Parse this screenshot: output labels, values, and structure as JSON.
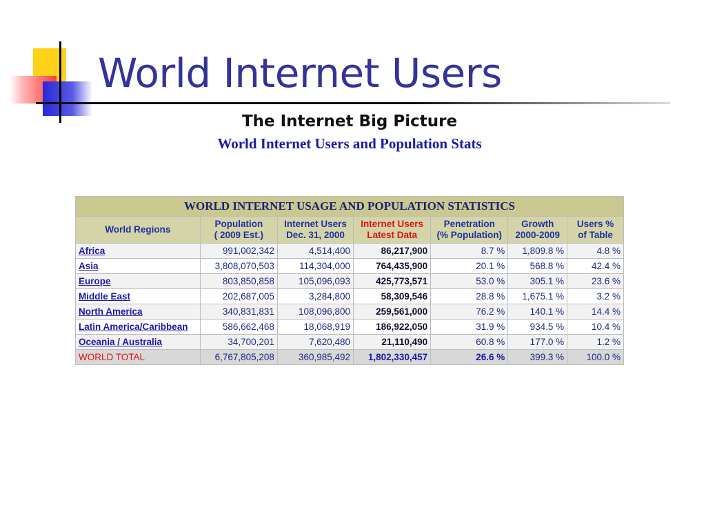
{
  "slide": {
    "title": "World Internet Users"
  },
  "header": {
    "big_picture": "The Internet Big Picture",
    "subtitle": "World Internet Users and Population Stats"
  },
  "table": {
    "caption": "WORLD INTERNET USAGE AND POPULATION STATISTICS",
    "columns": [
      [
        "World Regions"
      ],
      [
        "Population",
        "( 2009 Est.)"
      ],
      [
        "Internet Users",
        "Dec. 31, 2000"
      ],
      [
        "Internet Users",
        "Latest Data"
      ],
      [
        "Penetration",
        "(% Population)"
      ],
      [
        "Growth",
        "2000-2009"
      ],
      [
        "Users %",
        "of Table"
      ]
    ],
    "rows": [
      [
        "Africa",
        "991,002,342",
        "4,514,400",
        "86,217,900",
        "8.7 %",
        "1,809.8 %",
        "4.8 %"
      ],
      [
        "Asia",
        "3,808,070,503",
        "114,304,000",
        "764,435,900",
        "20.1 %",
        "568.8 %",
        "42.4 %"
      ],
      [
        "Europe",
        "803,850,858",
        "105,096,093",
        "425,773,571",
        "53.0 %",
        "305.1 %",
        "23.6 %"
      ],
      [
        "Middle East",
        "202,687,005",
        "3,284,800",
        "58,309,546",
        "28.8 %",
        "1,675.1 %",
        "3.2 %"
      ],
      [
        "North America",
        "340,831,831",
        "108,096,800",
        "259,561,000",
        "76.2 %",
        "140.1 %",
        "14.4 %"
      ],
      [
        "Latin America/Caribbean",
        "586,662,468",
        "18,068,919",
        "186,922,050",
        "31.9 %",
        "934.5 %",
        "10.4 %"
      ],
      [
        "Oceania / Australia",
        "34,700,201",
        "7,620,480",
        "21,110,490",
        "60.8 %",
        "177.0 %",
        "1.2 %"
      ]
    ],
    "total": [
      "WORLD TOTAL",
      "6,767,805,208",
      "360,985,492",
      "1,802,330,457",
      "26.6 %",
      "399.3 %",
      "100.0 %"
    ]
  },
  "colors": {
    "title": "#33339a",
    "caption_bg": "#c8c890",
    "header_bg": "#d4d4a8",
    "accent_red": "#e01010",
    "link_blue": "#1a1aa8"
  }
}
